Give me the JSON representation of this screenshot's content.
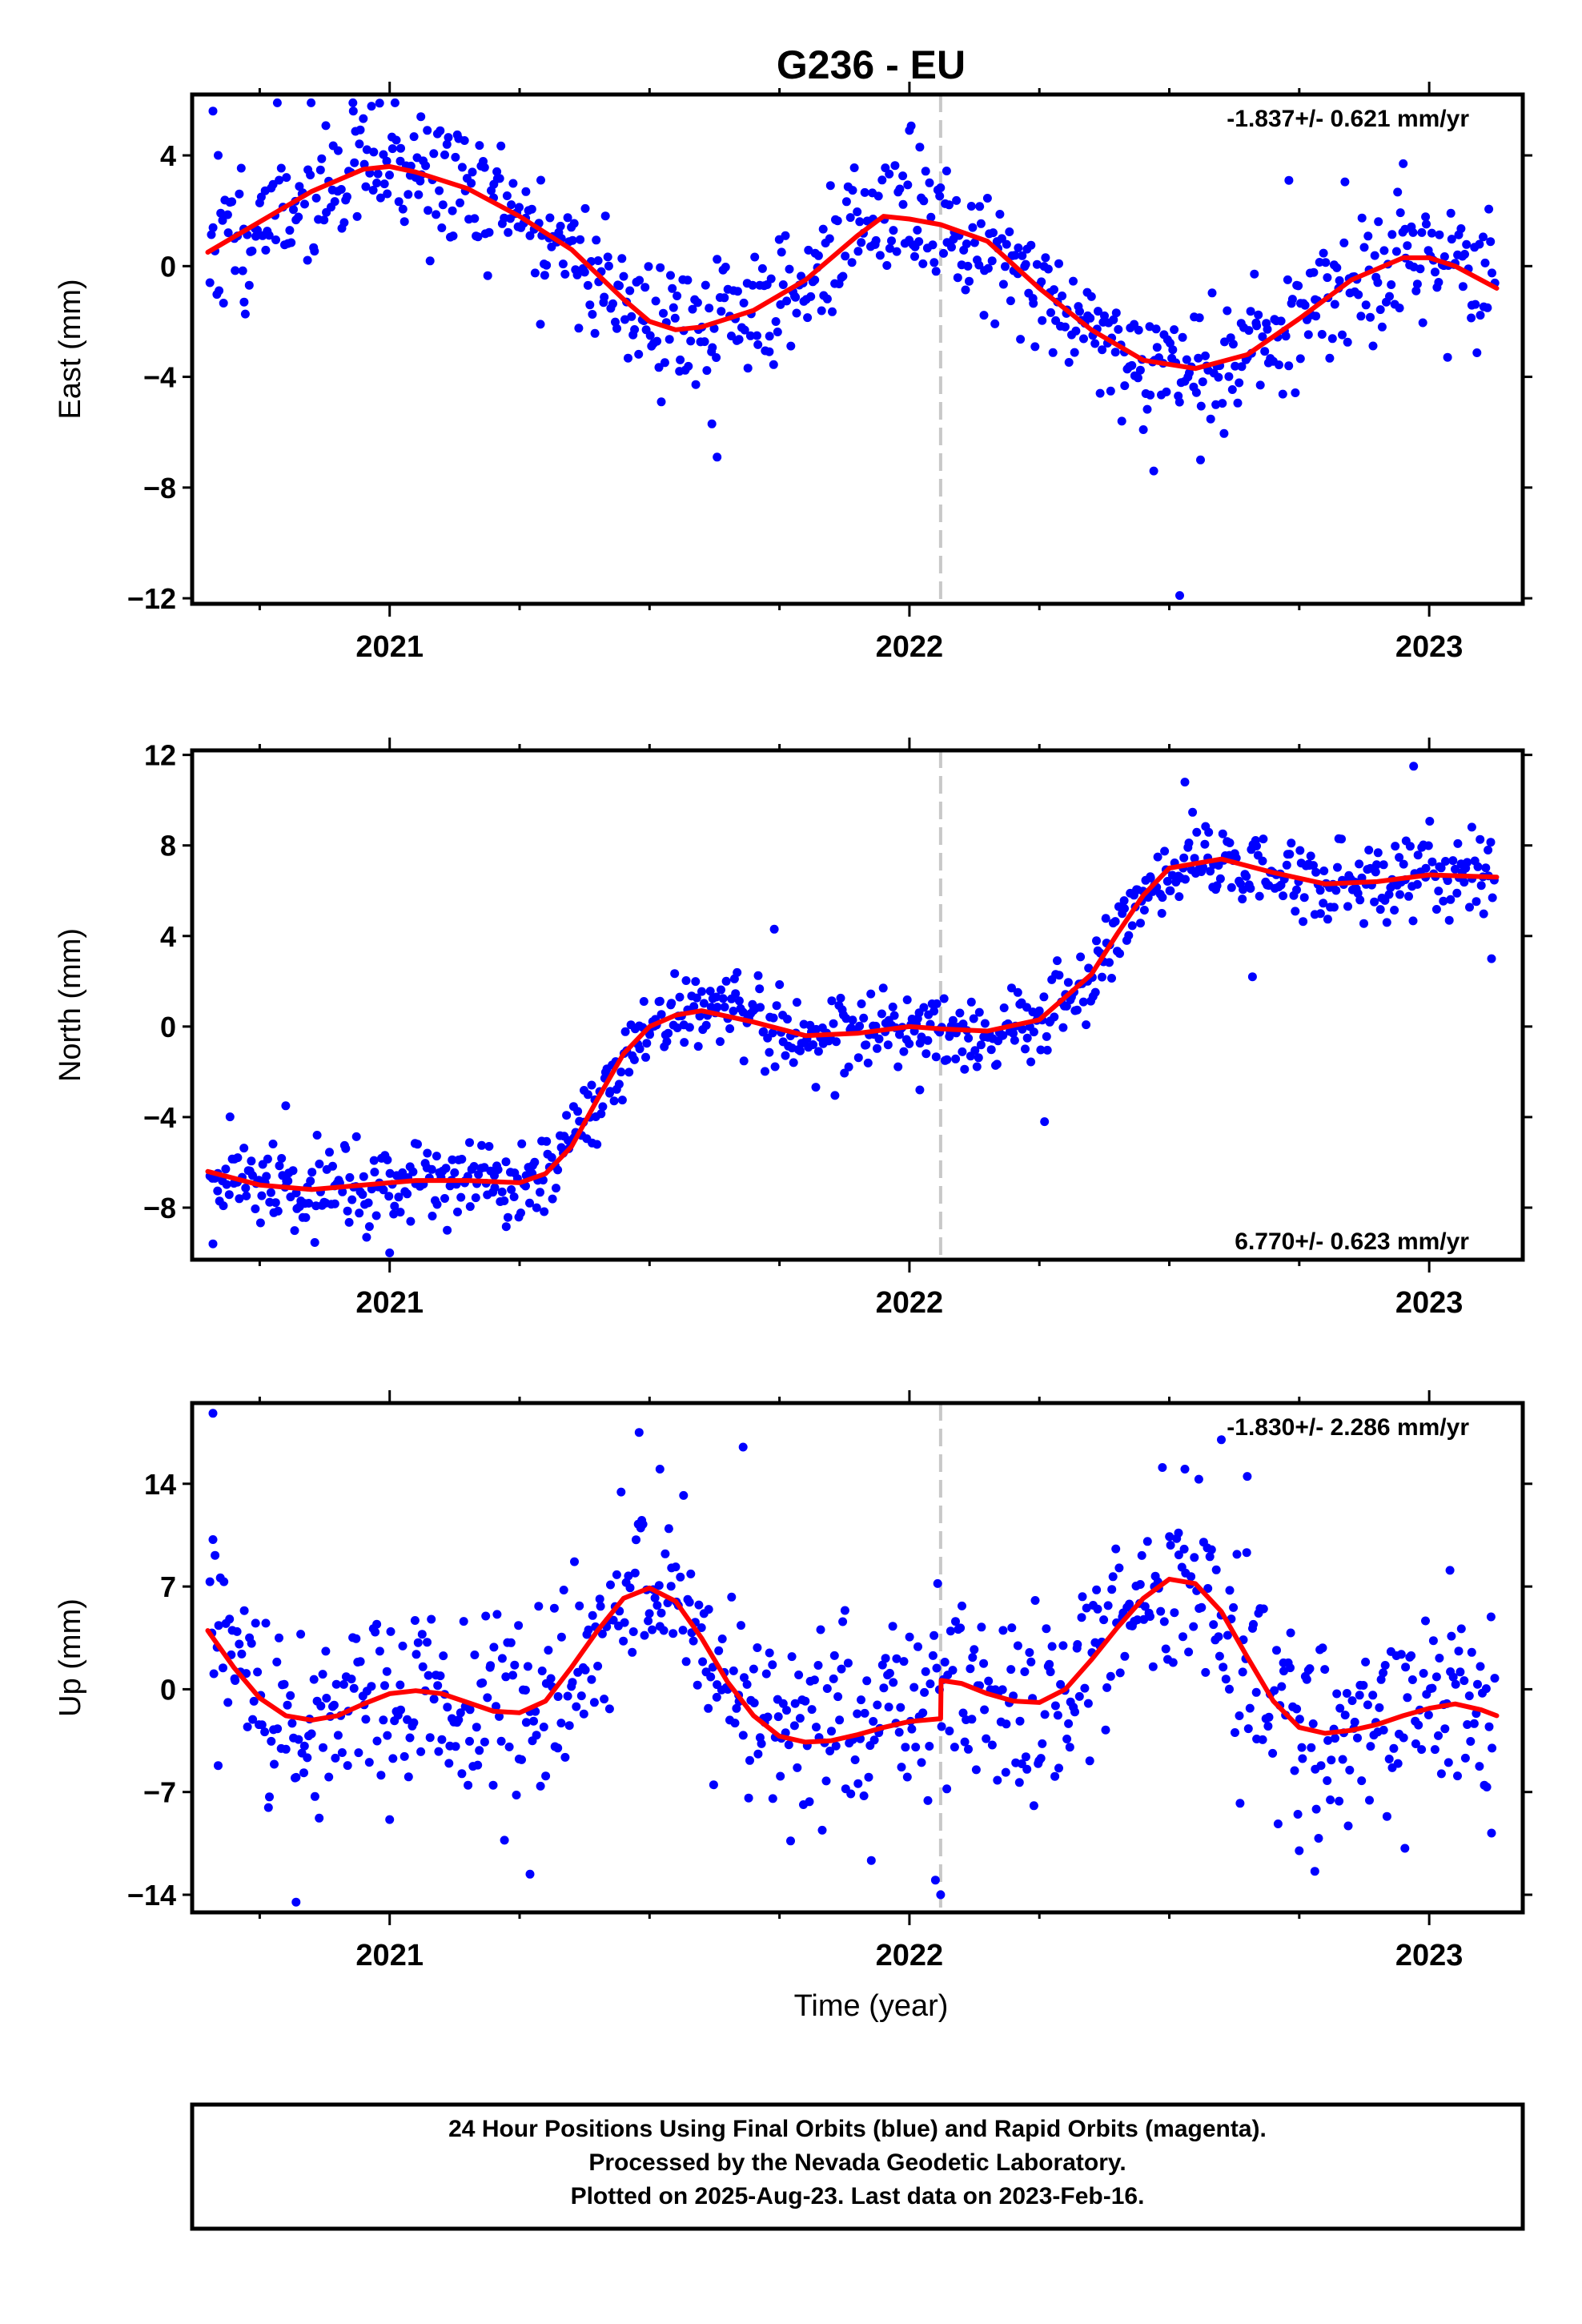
{
  "title": "G236 - EU",
  "xlabel": "Time (year)",
  "footer": {
    "lines": [
      "24 Hour Positions Using Final Orbits (blue) and Rapid Orbits (magenta).",
      "Processed by the Nevada Geodetic Laboratory.",
      "Plotted on 2025-Aug-23. Last data on 2023-Feb-16."
    ]
  },
  "colors": {
    "points": "#0000ff",
    "fit": "#ff0000",
    "event": "#c8c8c8",
    "frame": "#000000"
  },
  "chart_data": [
    {
      "type": "scatter",
      "name": "east",
      "ylabel": "East (mm)",
      "rate_text": "-1.837+/- 0.621 mm/yr",
      "xlim": [
        2020.62,
        2023.18
      ],
      "ylim": [
        -12.2,
        6.2
      ],
      "y_ticks": [
        4,
        0,
        -4,
        -8,
        -12
      ],
      "x_ticks": [
        2021,
        2022,
        2023
      ],
      "x_tick_labels": [
        "2021",
        "2022",
        "2023"
      ],
      "event_line": 2022.06,
      "fit_knots": [
        [
          2020.65,
          0.5
        ],
        [
          2020.75,
          1.6
        ],
        [
          2020.85,
          2.7
        ],
        [
          2020.95,
          3.5
        ],
        [
          2021.0,
          3.6
        ],
        [
          2021.05,
          3.4
        ],
        [
          2021.15,
          2.8
        ],
        [
          2021.25,
          1.8
        ],
        [
          2021.35,
          0.6
        ],
        [
          2021.45,
          -1.2
        ],
        [
          2021.5,
          -2.0
        ],
        [
          2021.55,
          -2.3
        ],
        [
          2021.6,
          -2.2
        ],
        [
          2021.7,
          -1.6
        ],
        [
          2021.8,
          -0.5
        ],
        [
          2021.9,
          1.1
        ],
        [
          2021.95,
          1.8
        ],
        [
          2022.0,
          1.7
        ],
        [
          2022.06,
          1.5
        ],
        [
          2022.15,
          0.9
        ],
        [
          2022.25,
          -0.8
        ],
        [
          2022.35,
          -2.3
        ],
        [
          2022.45,
          -3.4
        ],
        [
          2022.55,
          -3.7
        ],
        [
          2022.65,
          -3.2
        ],
        [
          2022.75,
          -1.9
        ],
        [
          2022.85,
          -0.5
        ],
        [
          2022.95,
          0.3
        ],
        [
          2023.0,
          0.3
        ],
        [
          2023.05,
          0.0
        ],
        [
          2023.13,
          -0.8
        ]
      ],
      "scatter_sd": 1.2,
      "points": [
        [
          2020.66,
          5.6
        ],
        [
          2020.67,
          4.0
        ],
        [
          2021.63,
          -6.9
        ],
        [
          2021.93,
          1.7
        ],
        [
          2022.0,
          4.9
        ],
        [
          2022.02,
          4.3
        ],
        [
          2022.73,
          3.1
        ],
        [
          2022.47,
          -7.4
        ],
        [
          2022.56,
          -7.0
        ],
        [
          2022.52,
          -11.9
        ],
        [
          2022.95,
          3.7
        ],
        [
          2021.62,
          -5.7
        ],
        [
          2020.93,
          5.6
        ],
        [
          2021.06,
          5.4
        ],
        [
          2021.29,
          -2.1
        ],
        [
          2020.72,
          -1.3
        ]
      ]
    },
    {
      "type": "scatter",
      "name": "north",
      "ylabel": "North (mm)",
      "rate_text": "6.770+/- 0.623 mm/yr",
      "xlim": [
        2020.62,
        2023.18
      ],
      "ylim": [
        -10.3,
        12.2
      ],
      "y_ticks": [
        12,
        8,
        4,
        0,
        -4,
        -8
      ],
      "x_ticks": [
        2021,
        2022,
        2023
      ],
      "x_tick_labels": [
        "2021",
        "2022",
        "2023"
      ],
      "event_line": 2022.06,
      "fit_knots": [
        [
          2020.65,
          -6.4
        ],
        [
          2020.75,
          -7.0
        ],
        [
          2020.85,
          -7.2
        ],
        [
          2020.95,
          -7.0
        ],
        [
          2021.05,
          -6.8
        ],
        [
          2021.15,
          -6.8
        ],
        [
          2021.25,
          -6.9
        ],
        [
          2021.3,
          -6.5
        ],
        [
          2021.35,
          -5.3
        ],
        [
          2021.4,
          -3.2
        ],
        [
          2021.45,
          -1.2
        ],
        [
          2021.5,
          0.0
        ],
        [
          2021.55,
          0.5
        ],
        [
          2021.6,
          0.7
        ],
        [
          2021.7,
          0.2
        ],
        [
          2021.8,
          -0.4
        ],
        [
          2021.9,
          -0.3
        ],
        [
          2022.0,
          0.0
        ],
        [
          2022.06,
          -0.1
        ],
        [
          2022.15,
          -0.2
        ],
        [
          2022.25,
          0.3
        ],
        [
          2022.35,
          2.3
        ],
        [
          2022.4,
          4.1
        ],
        [
          2022.45,
          5.8
        ],
        [
          2022.5,
          7.0
        ],
        [
          2022.6,
          7.4
        ],
        [
          2022.7,
          6.8
        ],
        [
          2022.8,
          6.3
        ],
        [
          2022.9,
          6.4
        ],
        [
          2023.0,
          6.7
        ],
        [
          2023.13,
          6.6
        ]
      ],
      "scatter_sd": 0.9,
      "points": [
        [
          2022.66,
          2.2
        ],
        [
          2022.26,
          -4.2
        ],
        [
          2022.53,
          10.8
        ],
        [
          2022.97,
          11.5
        ],
        [
          2023.12,
          3.0
        ],
        [
          2021.74,
          4.3
        ],
        [
          2020.66,
          -9.6
        ],
        [
          2021.0,
          -10.0
        ],
        [
          2022.02,
          -2.8
        ],
        [
          2020.8,
          -3.5
        ]
      ]
    },
    {
      "type": "scatter",
      "name": "up",
      "ylabel": "Up (mm)",
      "rate_text": "-1.830+/- 2.286 mm/yr",
      "xlim": [
        2020.62,
        2023.18
      ],
      "ylim": [
        -15.2,
        19.5
      ],
      "y_ticks": [
        14,
        7,
        0,
        -7,
        -14
      ],
      "x_ticks": [
        2021,
        2022,
        2023
      ],
      "x_tick_labels": [
        "2021",
        "2022",
        "2023"
      ],
      "event_line": 2022.06,
      "fit_knots": [
        [
          2020.65,
          4.0
        ],
        [
          2020.7,
          1.5
        ],
        [
          2020.75,
          -0.6
        ],
        [
          2020.8,
          -1.8
        ],
        [
          2020.85,
          -2.1
        ],
        [
          2020.9,
          -1.8
        ],
        [
          2020.95,
          -1.0
        ],
        [
          2021.0,
          -0.3
        ],
        [
          2021.05,
          -0.1
        ],
        [
          2021.1,
          -0.3
        ],
        [
          2021.15,
          -0.9
        ],
        [
          2021.2,
          -1.5
        ],
        [
          2021.25,
          -1.6
        ],
        [
          2021.3,
          -0.8
        ],
        [
          2021.35,
          1.5
        ],
        [
          2021.4,
          4.0
        ],
        [
          2021.45,
          6.2
        ],
        [
          2021.5,
          6.9
        ],
        [
          2021.55,
          6.0
        ],
        [
          2021.6,
          3.5
        ],
        [
          2021.65,
          0.5
        ],
        [
          2021.7,
          -1.8
        ],
        [
          2021.75,
          -3.2
        ],
        [
          2021.8,
          -3.6
        ],
        [
          2021.85,
          -3.5
        ],
        [
          2021.9,
          -3.1
        ],
        [
          2021.95,
          -2.6
        ],
        [
          2022.0,
          -2.2
        ],
        [
          2022.06,
          -2.0
        ],
        [
          2022.061,
          0.6
        ],
        [
          2022.1,
          0.4
        ],
        [
          2022.15,
          -0.3
        ],
        [
          2022.2,
          -0.8
        ],
        [
          2022.25,
          -0.9
        ],
        [
          2022.3,
          0.0
        ],
        [
          2022.35,
          2.0
        ],
        [
          2022.4,
          4.2
        ],
        [
          2022.45,
          6.2
        ],
        [
          2022.5,
          7.5
        ],
        [
          2022.55,
          7.2
        ],
        [
          2022.6,
          5.3
        ],
        [
          2022.65,
          2.2
        ],
        [
          2022.7,
          -0.8
        ],
        [
          2022.75,
          -2.6
        ],
        [
          2022.8,
          -3.0
        ],
        [
          2022.85,
          -2.8
        ],
        [
          2022.9,
          -2.4
        ],
        [
          2022.95,
          -1.8
        ],
        [
          2023.0,
          -1.3
        ],
        [
          2023.05,
          -1.0
        ],
        [
          2023.1,
          -1.4
        ],
        [
          2023.13,
          -1.8
        ]
      ],
      "scatter_sd": 3.2,
      "points": [
        [
          2020.66,
          18.8
        ],
        [
          2020.66,
          10.2
        ],
        [
          2020.67,
          -5.2
        ],
        [
          2020.82,
          -14.5
        ],
        [
          2021.27,
          -12.6
        ],
        [
          2021.48,
          17.5
        ],
        [
          2021.52,
          15.0
        ],
        [
          2021.68,
          16.5
        ],
        [
          2022.06,
          -14.0
        ],
        [
          2022.05,
          -13.0
        ],
        [
          2022.53,
          15.0
        ],
        [
          2022.6,
          17.0
        ],
        [
          2022.65,
          14.5
        ],
        [
          2022.78,
          -12.4
        ],
        [
          2023.12,
          -9.8
        ],
        [
          2022.75,
          -11.0
        ],
        [
          2023.04,
          8.1
        ]
      ]
    }
  ]
}
